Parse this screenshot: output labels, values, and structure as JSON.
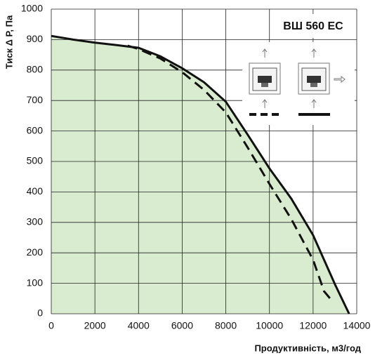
{
  "chart_data": {
    "type": "line",
    "title": "ВШ 560 ЕС",
    "y_label": "Тиск Δ Р, Па",
    "x_label": "Продуктивність, м3/год",
    "xlim": [
      0,
      14000
    ],
    "ylim": [
      0,
      1000
    ],
    "xticks": [
      0,
      2000,
      4000,
      6000,
      8000,
      10000,
      12000,
      14000
    ],
    "yticks": [
      0,
      100,
      200,
      300,
      400,
      500,
      600,
      700,
      800,
      900,
      1000
    ],
    "grid": true,
    "fill_series": 0,
    "fill_color": "#d9ecd0",
    "series": [
      {
        "color": "#111111",
        "dash": false,
        "x": [
          0,
          1000,
          2000,
          3000,
          4000,
          5000,
          6000,
          7000,
          8000,
          9000,
          10000,
          11000,
          12000,
          13000,
          13650
        ],
        "values": [
          912,
          900,
          890,
          882,
          873,
          845,
          806,
          760,
          696,
          588,
          477,
          378,
          258,
          97,
          0
        ]
      },
      {
        "color": "#111111",
        "dash": true,
        "x": [
          3500,
          4000,
          5000,
          6000,
          7000,
          8000,
          9000,
          10000,
          11000,
          12000,
          12500,
          12900
        ],
        "values": [
          880,
          869,
          838,
          793,
          735,
          661,
          546,
          426,
          311,
          177,
          74,
          40
        ]
      }
    ]
  }
}
